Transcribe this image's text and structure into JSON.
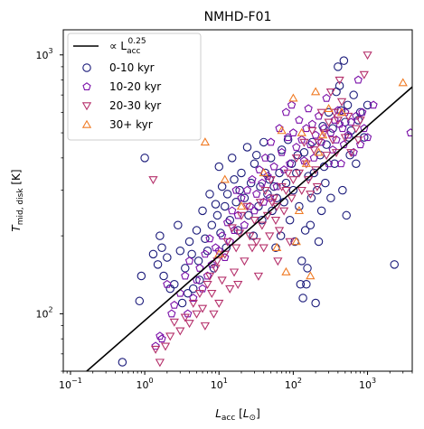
{
  "chart_data": {
    "type": "scatter",
    "title": "NMHD-F01",
    "xlabel": "L_acc [L_⊙]",
    "ylabel": "T_mid,disk [K]",
    "xscale": "log",
    "yscale": "log",
    "xlim": [
      0.08,
      4000
    ],
    "ylim": [
      60,
      1250
    ],
    "x_ticks": [
      {
        "value": 0.1,
        "base": "10",
        "exp": "−1"
      },
      {
        "value": 1,
        "base": "10",
        "exp": "0"
      },
      {
        "value": 10,
        "base": "10",
        "exp": "1"
      },
      {
        "value": 100,
        "base": "10",
        "exp": "2"
      },
      {
        "value": 1000,
        "base": "10",
        "exp": "3"
      }
    ],
    "y_ticks": [
      {
        "value": 100,
        "base": "10",
        "exp": "2"
      },
      {
        "value": 1000,
        "base": "10",
        "exp": "3"
      }
    ],
    "grid": false,
    "legend_position": "top-left",
    "fit_line": {
      "label_prefix": "∝ L",
      "label_sub": "acc",
      "label_sup": "0.25",
      "color": "#000000",
      "x": [
        0.13,
        4000
      ],
      "y": [
        56.5,
        752
      ]
    },
    "series": [
      {
        "name": "0-10 kyr",
        "marker": "circle",
        "color": "#1a1a7a",
        "points": [
          [
            0.5,
            65
          ],
          [
            0.85,
            112
          ],
          [
            0.9,
            140
          ],
          [
            1.0,
            400
          ],
          [
            1.3,
            170
          ],
          [
            1.5,
            155
          ],
          [
            1.6,
            200
          ],
          [
            1.7,
            180
          ],
          [
            1.8,
            140
          ],
          [
            2.0,
            165
          ],
          [
            2.2,
            125
          ],
          [
            2.5,
            130
          ],
          [
            2.8,
            220
          ],
          [
            3.0,
            175
          ],
          [
            3.2,
            110
          ],
          [
            3.5,
            150
          ],
          [
            3.8,
            120
          ],
          [
            4.0,
            190
          ],
          [
            4.3,
            170
          ],
          [
            4.5,
            125
          ],
          [
            5.0,
            210
          ],
          [
            5.3,
            160
          ],
          [
            5.5,
            135
          ],
          [
            6.0,
            250
          ],
          [
            6.5,
            195
          ],
          [
            7.0,
            175
          ],
          [
            7.5,
            290
          ],
          [
            8.0,
            220
          ],
          [
            8.5,
            150
          ],
          [
            9.0,
            265
          ],
          [
            9.5,
            240
          ],
          [
            10,
            370
          ],
          [
            10.5,
            205
          ],
          [
            11,
            310
          ],
          [
            12,
            260
          ],
          [
            12.5,
            180
          ],
          [
            13,
            290
          ],
          [
            14,
            230
          ],
          [
            15,
            400
          ],
          [
            16,
            330
          ],
          [
            17,
            270
          ],
          [
            18,
            210
          ],
          [
            19,
            300
          ],
          [
            20,
            350
          ],
          [
            22,
            280
          ],
          [
            24,
            440
          ],
          [
            25,
            240
          ],
          [
            27,
            320
          ],
          [
            29,
            200
          ],
          [
            30,
            380
          ],
          [
            32,
            410
          ],
          [
            34,
            260
          ],
          [
            36,
            310
          ],
          [
            38,
            230
          ],
          [
            40,
            460
          ],
          [
            42,
            350
          ],
          [
            45,
            290
          ],
          [
            48,
            330
          ],
          [
            50,
            400
          ],
          [
            52,
            250
          ],
          [
            55,
            310
          ],
          [
            58,
            180
          ],
          [
            60,
            280
          ],
          [
            65,
            350
          ],
          [
            68,
            200
          ],
          [
            70,
            430
          ],
          [
            75,
            270
          ],
          [
            80,
            320
          ],
          [
            85,
            470
          ],
          [
            90,
            230
          ],
          [
            95,
            380
          ],
          [
            100,
            300
          ],
          [
            105,
            190
          ],
          [
            110,
            350
          ],
          [
            115,
            410
          ],
          [
            120,
            260
          ],
          [
            125,
            130
          ],
          [
            130,
            160
          ],
          [
            135,
            115
          ],
          [
            140,
            420
          ],
          [
            145,
            210
          ],
          [
            150,
            130
          ],
          [
            155,
            150
          ],
          [
            160,
            340
          ],
          [
            170,
            220
          ],
          [
            175,
            280
          ],
          [
            180,
            460
          ],
          [
            190,
            350
          ],
          [
            200,
            110
          ],
          [
            210,
            300
          ],
          [
            220,
            190
          ],
          [
            230,
            410
          ],
          [
            240,
            250
          ],
          [
            250,
            530
          ],
          [
            260,
            370
          ],
          [
            270,
            320
          ],
          [
            280,
            450
          ],
          [
            300,
            600
          ],
          [
            320,
            280
          ],
          [
            340,
            520
          ],
          [
            360,
            380
          ],
          [
            380,
            720
          ],
          [
            400,
            900
          ],
          [
            420,
            760
          ],
          [
            440,
            610
          ],
          [
            460,
            300
          ],
          [
            480,
            950
          ],
          [
            500,
            550
          ],
          [
            520,
            240
          ],
          [
            540,
            640
          ],
          [
            560,
            480
          ],
          [
            580,
            410
          ],
          [
            600,
            510
          ],
          [
            650,
            700
          ],
          [
            700,
            380
          ],
          [
            750,
            560
          ],
          [
            800,
            600
          ],
          [
            900,
            480
          ],
          [
            1000,
            640
          ],
          [
            2300,
            155
          ]
        ]
      },
      {
        "name": "10-20 kyr",
        "marker": "pentagon",
        "color": "#7a0fa8",
        "points": [
          [
            1.4,
            75
          ],
          [
            1.6,
            82
          ],
          [
            1.7,
            80
          ],
          [
            2.0,
            130
          ],
          [
            2.3,
            100
          ],
          [
            2.5,
            108
          ],
          [
            3.0,
            120
          ],
          [
            3.5,
            140
          ],
          [
            3.8,
            100
          ],
          [
            4.0,
            160
          ],
          [
            4.5,
            115
          ],
          [
            5.0,
            135
          ],
          [
            5.5,
            150
          ],
          [
            6.0,
            125
          ],
          [
            6.5,
            170
          ],
          [
            7.0,
            140
          ],
          [
            7.5,
            195
          ],
          [
            8.0,
            155
          ],
          [
            9.0,
            180
          ],
          [
            10,
            175
          ],
          [
            11,
            200
          ],
          [
            12,
            165
          ],
          [
            13,
            225
          ],
          [
            14,
            190
          ],
          [
            15,
            250
          ],
          [
            16,
            210
          ],
          [
            17,
            300
          ],
          [
            18,
            240
          ],
          [
            20,
            280
          ],
          [
            22,
            220
          ],
          [
            24,
            300
          ],
          [
            26,
            260
          ],
          [
            28,
            330
          ],
          [
            30,
            250
          ],
          [
            32,
            290
          ],
          [
            35,
            360
          ],
          [
            38,
            320
          ],
          [
            40,
            270
          ],
          [
            42,
            400
          ],
          [
            45,
            340
          ],
          [
            48,
            280
          ],
          [
            50,
            460
          ],
          [
            55,
            370
          ],
          [
            60,
            310
          ],
          [
            65,
            520
          ],
          [
            70,
            420
          ],
          [
            75,
            360
          ],
          [
            80,
            600
          ],
          [
            85,
            480
          ],
          [
            90,
            380
          ],
          [
            95,
            640
          ],
          [
            100,
            500
          ],
          [
            110,
            440
          ],
          [
            120,
            560
          ],
          [
            130,
            470
          ],
          [
            140,
            390
          ],
          [
            150,
            520
          ],
          [
            160,
            620
          ],
          [
            170,
            450
          ],
          [
            180,
            540
          ],
          [
            190,
            400
          ],
          [
            200,
            490
          ],
          [
            220,
            580
          ],
          [
            240,
            460
          ],
          [
            260,
            520
          ],
          [
            280,
            680
          ],
          [
            300,
            380
          ],
          [
            320,
            500
          ],
          [
            340,
            430
          ],
          [
            360,
            560
          ],
          [
            380,
            470
          ],
          [
            400,
            610
          ],
          [
            420,
            540
          ],
          [
            440,
            380
          ],
          [
            460,
            520
          ],
          [
            480,
            450
          ],
          [
            500,
            600
          ],
          [
            550,
            490
          ],
          [
            600,
            550
          ],
          [
            650,
            420
          ],
          [
            700,
            580
          ],
          [
            750,
            800
          ],
          [
            800,
            450
          ],
          [
            850,
            600
          ],
          [
            900,
            520
          ],
          [
            1000,
            480
          ],
          [
            1200,
            640
          ],
          [
            3800,
            500
          ]
        ]
      },
      {
        "name": "20-30 kyr",
        "marker": "triangle-down",
        "color": "#b5306b",
        "points": [
          [
            1.4,
            73
          ],
          [
            1.6,
            65
          ],
          [
            1.9,
            75
          ],
          [
            2.2,
            82
          ],
          [
            2.5,
            93
          ],
          [
            3.0,
            86
          ],
          [
            3.5,
            97
          ],
          [
            4.0,
            92
          ],
          [
            4.5,
            110
          ],
          [
            5.0,
            100
          ],
          [
            5.5,
            120
          ],
          [
            6.0,
            105
          ],
          [
            6.5,
            90
          ],
          [
            7.0,
            130
          ],
          [
            7.5,
            140
          ],
          [
            8.0,
            120
          ],
          [
            8.5,
            100
          ],
          [
            9.0,
            150
          ],
          [
            9.5,
            160
          ],
          [
            10,
            110
          ],
          [
            11,
            135
          ],
          [
            12,
            170
          ],
          [
            13,
            190
          ],
          [
            14,
            125
          ],
          [
            15,
            215
          ],
          [
            16,
            145
          ],
          [
            17,
            180
          ],
          [
            18,
            130
          ],
          [
            19,
            205
          ],
          [
            20,
            240
          ],
          [
            22,
            160
          ],
          [
            24,
            260
          ],
          [
            26,
            200
          ],
          [
            28,
            180
          ],
          [
            30,
            230
          ],
          [
            32,
            190
          ],
          [
            34,
            140
          ],
          [
            36,
            270
          ],
          [
            38,
            220
          ],
          [
            40,
            180
          ],
          [
            42,
            300
          ],
          [
            45,
            240
          ],
          [
            48,
            200
          ],
          [
            50,
            330
          ],
          [
            52,
            270
          ],
          [
            55,
            280
          ],
          [
            58,
            230
          ],
          [
            60,
            260
          ],
          [
            62,
            160
          ],
          [
            65,
            210
          ],
          [
            70,
            310
          ],
          [
            75,
            250
          ],
          [
            80,
            300
          ],
          [
            85,
            350
          ],
          [
            90,
            190
          ],
          [
            95,
            280
          ],
          [
            100,
            330
          ],
          [
            110,
            400
          ],
          [
            120,
            350
          ],
          [
            130,
            300
          ],
          [
            140,
            460
          ],
          [
            150,
            380
          ],
          [
            160,
            330
          ],
          [
            170,
            290
          ],
          [
            180,
            510
          ],
          [
            190,
            430
          ],
          [
            200,
            360
          ],
          [
            210,
            310
          ],
          [
            220,
            460
          ],
          [
            240,
            600
          ],
          [
            260,
            500
          ],
          [
            280,
            410
          ],
          [
            300,
            550
          ],
          [
            320,
            720
          ],
          [
            340,
            470
          ],
          [
            360,
            600
          ],
          [
            380,
            420
          ],
          [
            400,
            560
          ],
          [
            420,
            800
          ],
          [
            450,
            660
          ],
          [
            500,
            480
          ],
          [
            550,
            580
          ],
          [
            600,
            420
          ],
          [
            700,
            520
          ],
          [
            750,
            470
          ],
          [
            800,
            560
          ],
          [
            900,
            840
          ],
          [
            1000,
            1000
          ],
          [
            1.3,
            330
          ]
        ]
      },
      {
        "name": "30+ kyr",
        "marker": "triangle-up",
        "color": "#f07b25",
        "points": [
          [
            6.5,
            460
          ],
          [
            10,
            170
          ],
          [
            12,
            330
          ],
          [
            20,
            260
          ],
          [
            40,
            350
          ],
          [
            60,
            180
          ],
          [
            70,
            510
          ],
          [
            80,
            145
          ],
          [
            100,
            680
          ],
          [
            110,
            190
          ],
          [
            120,
            250
          ],
          [
            130,
            500
          ],
          [
            150,
            380
          ],
          [
            170,
            140
          ],
          [
            200,
            720
          ],
          [
            220,
            420
          ],
          [
            250,
            490
          ],
          [
            300,
            620
          ],
          [
            3000,
            780
          ],
          [
            450,
            600
          ]
        ]
      }
    ]
  }
}
